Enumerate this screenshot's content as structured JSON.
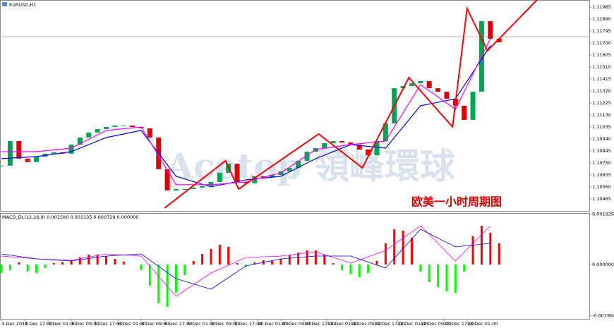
{
  "chart_data": [
    {
      "type": "candlestick",
      "title": "EURUSD,H1",
      "x": [
        0,
        3,
        6,
        9,
        12,
        15,
        18,
        21,
        24,
        27,
        30,
        33,
        36,
        39,
        42,
        45,
        48,
        51,
        54,
        57,
        60,
        63,
        66,
        69,
        72,
        75,
        78,
        81,
        84,
        87,
        90,
        93,
        96,
        99,
        102,
        105,
        108,
        111,
        114,
        117,
        120,
        123,
        126,
        129,
        132,
        135,
        138,
        141,
        144,
        147,
        150,
        153,
        156,
        159,
        162,
        165,
        168,
        171
      ],
      "close": [
        1.10728,
        1.10923,
        1.10784,
        1.10756,
        1.108,
        1.10823,
        1.10834,
        1.10823,
        1.10895,
        1.10951,
        1.1099,
        1.11018,
        1.11035,
        1.11046,
        1.11046,
        1.11035,
        1.11024,
        1.10951,
        1.107,
        1.10532,
        1.10543,
        1.10543,
        1.10554,
        1.10566,
        1.10599,
        1.10672,
        1.10744,
        1.10599,
        1.10588,
        1.10644,
        1.10633,
        1.10655,
        1.10683,
        1.10711,
        1.10767,
        1.10839,
        1.10867,
        1.10906,
        1.10923,
        1.10912,
        1.10895,
        1.10856,
        1.10811,
        1.10923,
        1.11063,
        1.11342,
        1.11359,
        1.11381,
        1.11398,
        1.11342,
        1.11314,
        1.11258,
        1.11203,
        1.11091,
        1.11314,
        1.11873,
        1.11734,
        1.11706
      ],
      "up_color": "#00a651",
      "down_color": "#e00000",
      "xlim": [
        -0.5,
        202
      ],
      "ylim": [
        1.10364,
        1.12041
      ],
      "yticks": [
        1.11985,
        {
          "value": 1.1189,
          "label": "1.11890"
        },
        1.11795,
        {
          "value": 1.117,
          "label": "1.11700"
        },
        1.11605,
        {
          "value": 1.1151,
          "label": "1.11510"
        },
        1.11415,
        {
          "value": 1.1132,
          "label": "1.11320"
        },
        1.11225,
        {
          "value": 1.1113,
          "label": "1.11130"
        },
        1.11035,
        {
          "value": 1.1094,
          "label": "1.10940"
        },
        1.10845,
        {
          "value": 1.1075,
          "label": "1.10750"
        },
        1.10655,
        {
          "value": 1.1056,
          "label": "1.10560"
        },
        1.10465
      ],
      "lines": [
        {
          "color": "#0000ff",
          "x": [
            0,
            12,
            24,
            36,
            48,
            60,
            72,
            84,
            96,
            108,
            120,
            132,
            144,
            156,
            168
          ],
          "values": [
            1.10784,
            1.108,
            1.10839,
            1.10951,
            1.11007,
            1.10644,
            1.1056,
            1.10616,
            1.10644,
            1.10784,
            1.10895,
            1.10867,
            1.11203,
            1.11258,
            1.11678
          ]
        },
        {
          "color": "#ff00ff",
          "x": [
            0,
            12,
            24,
            36,
            48,
            60,
            72,
            84,
            96,
            108,
            120,
            132,
            144,
            156,
            168
          ],
          "values": [
            1.10839,
            1.10839,
            1.10867,
            1.11007,
            1.11035,
            1.10577,
            1.10577,
            1.10599,
            1.10672,
            1.10856,
            1.10895,
            1.10923,
            1.1137,
            1.11175,
            1.11734
          ]
        }
      ],
      "zigzag": {
        "color": "#ff0000",
        "x": [
          56,
          77,
          81.5,
          109,
          124,
          140,
          155,
          160,
          167,
          184
        ],
        "values": [
          1.10392,
          1.10767,
          1.10543,
          1.10979,
          1.10711,
          1.11426,
          1.11035,
          1.11974,
          1.11639,
          1.12041
        ]
      },
      "price_line": 1.1175,
      "watermark": "Acetop 領峰環球",
      "annotation": "欧美一小时周期图"
    },
    {
      "type": "macd",
      "title": "MACD_DL(12,26,9) 0.001580 0.001135 0.000729 0.000000",
      "x": [
        0,
        3,
        6,
        9,
        12,
        15,
        18,
        21,
        24,
        27,
        30,
        33,
        36,
        39,
        42,
        45,
        48,
        51,
        54,
        57,
        60,
        63,
        66,
        69,
        72,
        75,
        78,
        81,
        84,
        87,
        90,
        93,
        96,
        99,
        102,
        105,
        108,
        111,
        114,
        117,
        120,
        123,
        126,
        129,
        132,
        135,
        138,
        141,
        144,
        147,
        150,
        153,
        156,
        159,
        162,
        165,
        168,
        171
      ],
      "values": [
        -0.000324,
        -0.000216,
        8.1e-05,
        -0.00027,
        -0.000324,
        -0.000135,
        5.4e-05,
        8.1e-05,
        0.000162,
        0.00027,
        0.000378,
        0.000378,
        0.000324,
        0.000216,
        0.000108,
        0,
        -0.000216,
        -0.00081,
        -0.001485,
        -0.00162,
        -0.00108,
        -0.000405,
        0.000135,
        0.000405,
        0.000594,
        0.000756,
        0.000675,
        5.4e-05,
        -8.1e-05,
        8.1e-05,
        0.000162,
        0.000135,
        0.000216,
        0.000351,
        0.000459,
        0.00054,
        0.00054,
        0.000378,
        5.4e-05,
        -0.000216,
        -0.000378,
        -0.000486,
        -0.000324,
        0.000135,
        0.00081,
        0.00135,
        0.001296,
        0.001026,
        -0.00027,
        -0.000675,
        -0.000864,
        -0.001026,
        -0.00108,
        -0.00027,
        0.00108,
        0.001485,
        0.001215,
        0.00081
      ],
      "positive_color": "#ff0000",
      "negative_color": "#00ff00",
      "xlim": [
        -0.5,
        202
      ],
      "ylim": [
        -0.002079,
        0.001971
      ],
      "yticks": [
        {
          "value": 0.001929,
          "label": "0.001929"
        },
        {
          "value": 0,
          "label": "0.000000"
        },
        {
          "value": -0.001964,
          "label": "-0.001964"
        }
      ],
      "lines": [
        {
          "color": "#ff00ff",
          "x": [
            0,
            12,
            24,
            36,
            48,
            60,
            72,
            84,
            96,
            108,
            120,
            132,
            144,
            156,
            168
          ],
          "values": [
            0.000324,
            0.000216,
            0.000162,
            0.000405,
            0.000324,
            -0.001215,
            -0.000324,
            0.00027,
            0.000324,
            0.000486,
            5.4e-05,
            0.00054,
            0.001485,
            0.000135,
            0.001485
          ]
        },
        {
          "color": "#0000ff",
          "x": [
            0,
            12,
            24,
            36,
            48,
            60,
            72,
            84,
            96,
            108,
            120,
            132,
            144,
            156,
            168
          ],
          "values": [
            0.000405,
            0.000216,
            0.000135,
            0.000324,
            0.000405,
            -0.00054,
            -0.000945,
            -5.4e-05,
            0.000216,
            0.000324,
            0.000324,
            -0.000135,
            0.00135,
            0.000675,
            0.00081
          ]
        }
      ],
      "xticks": [
        {
          "value": 0,
          "label": "4 Dec 2019"
        },
        {
          "value": 8,
          "label": "4 Dec 17:00"
        },
        {
          "value": 16,
          "label": "5 Dec 01:00"
        },
        {
          "value": 24,
          "label": "5 Dec 09:00"
        },
        {
          "value": 32,
          "label": "5 Dec 17:00"
        },
        {
          "value": 40,
          "label": "6 Dec 01:00"
        },
        {
          "value": 48,
          "label": "6 Dec 09:00"
        },
        {
          "value": 56,
          "label": "6 Dec 17:00"
        },
        {
          "value": 64,
          "label": "9 Dec 01:00"
        },
        {
          "value": 72,
          "label": "9 Dec 09:00"
        },
        {
          "value": 80,
          "label": "9 Dec 17:00"
        },
        {
          "value": 88,
          "label": "10 Dec 01:00"
        },
        {
          "value": 96,
          "label": "10 Dec 09:00"
        },
        {
          "value": 104,
          "label": "10 Dec 17:00"
        },
        {
          "value": 112,
          "label": "11 Dec 01:00"
        },
        {
          "value": 120,
          "label": "11 Dec 09:00"
        },
        {
          "value": 128,
          "label": "11 Dec 17:00"
        },
        {
          "value": 136,
          "label": "12 Dec 01:00"
        },
        {
          "value": 144,
          "label": "12 Dec 09:00"
        },
        {
          "value": 152,
          "label": "12 Dec 17:00"
        },
        {
          "value": 160,
          "label": "13 Dec 01:00"
        }
      ]
    }
  ]
}
